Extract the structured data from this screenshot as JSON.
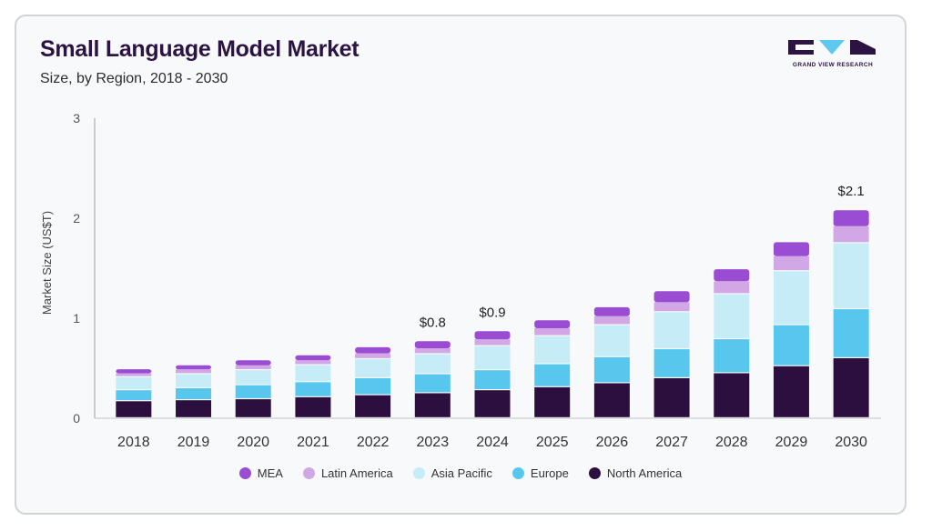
{
  "header": {
    "title": "Small Language Model Market",
    "subtitle": "Size, by Region, 2018 - 2030"
  },
  "logo": {
    "text": "GRAND VIEW RESEARCH",
    "icon": "grand-view-research-logo"
  },
  "chart_data": {
    "type": "bar",
    "stacked": true,
    "title": "Small Language Model Market",
    "subtitle": "Size, by Region, 2018 - 2030",
    "xlabel": "",
    "ylabel": "Market Size (US$T)",
    "ylim": [
      0,
      3
    ],
    "yticks": [
      "0",
      "1",
      "2",
      "3"
    ],
    "categories": [
      "2018",
      "2019",
      "2020",
      "2021",
      "2022",
      "2023",
      "2024",
      "2025",
      "2026",
      "2027",
      "2028",
      "2029",
      "2030"
    ],
    "series": [
      {
        "name": "North America",
        "color": "#2d0f3f",
        "values": [
          0.17,
          0.18,
          0.19,
          0.21,
          0.23,
          0.25,
          0.28,
          0.31,
          0.35,
          0.4,
          0.45,
          0.52,
          0.6
        ]
      },
      {
        "name": "Europe",
        "color": "#57c7ee",
        "values": [
          0.11,
          0.12,
          0.14,
          0.15,
          0.17,
          0.19,
          0.2,
          0.23,
          0.26,
          0.29,
          0.34,
          0.41,
          0.49
        ]
      },
      {
        "name": "Asia Pacific",
        "color": "#c6ecf8",
        "values": [
          0.13,
          0.14,
          0.15,
          0.17,
          0.19,
          0.2,
          0.24,
          0.28,
          0.32,
          0.37,
          0.45,
          0.54,
          0.66
        ]
      },
      {
        "name": "Latin America",
        "color": "#d2a7e6",
        "values": [
          0.04,
          0.05,
          0.05,
          0.05,
          0.06,
          0.06,
          0.07,
          0.08,
          0.09,
          0.1,
          0.13,
          0.15,
          0.17
        ]
      },
      {
        "name": "MEA",
        "color": "#9a4cd3",
        "values": [
          0.04,
          0.04,
          0.05,
          0.05,
          0.06,
          0.07,
          0.08,
          0.08,
          0.09,
          0.11,
          0.12,
          0.14,
          0.16
        ]
      }
    ],
    "annotations": [
      {
        "category": "2023",
        "label": "$0.8"
      },
      {
        "category": "2024",
        "label": "$0.9"
      },
      {
        "category": "2030",
        "label": "$2.1"
      }
    ],
    "legend_order": [
      "MEA",
      "Latin America",
      "Asia Pacific",
      "Europe",
      "North America"
    ],
    "legend_position": "bottom",
    "grid": false
  }
}
